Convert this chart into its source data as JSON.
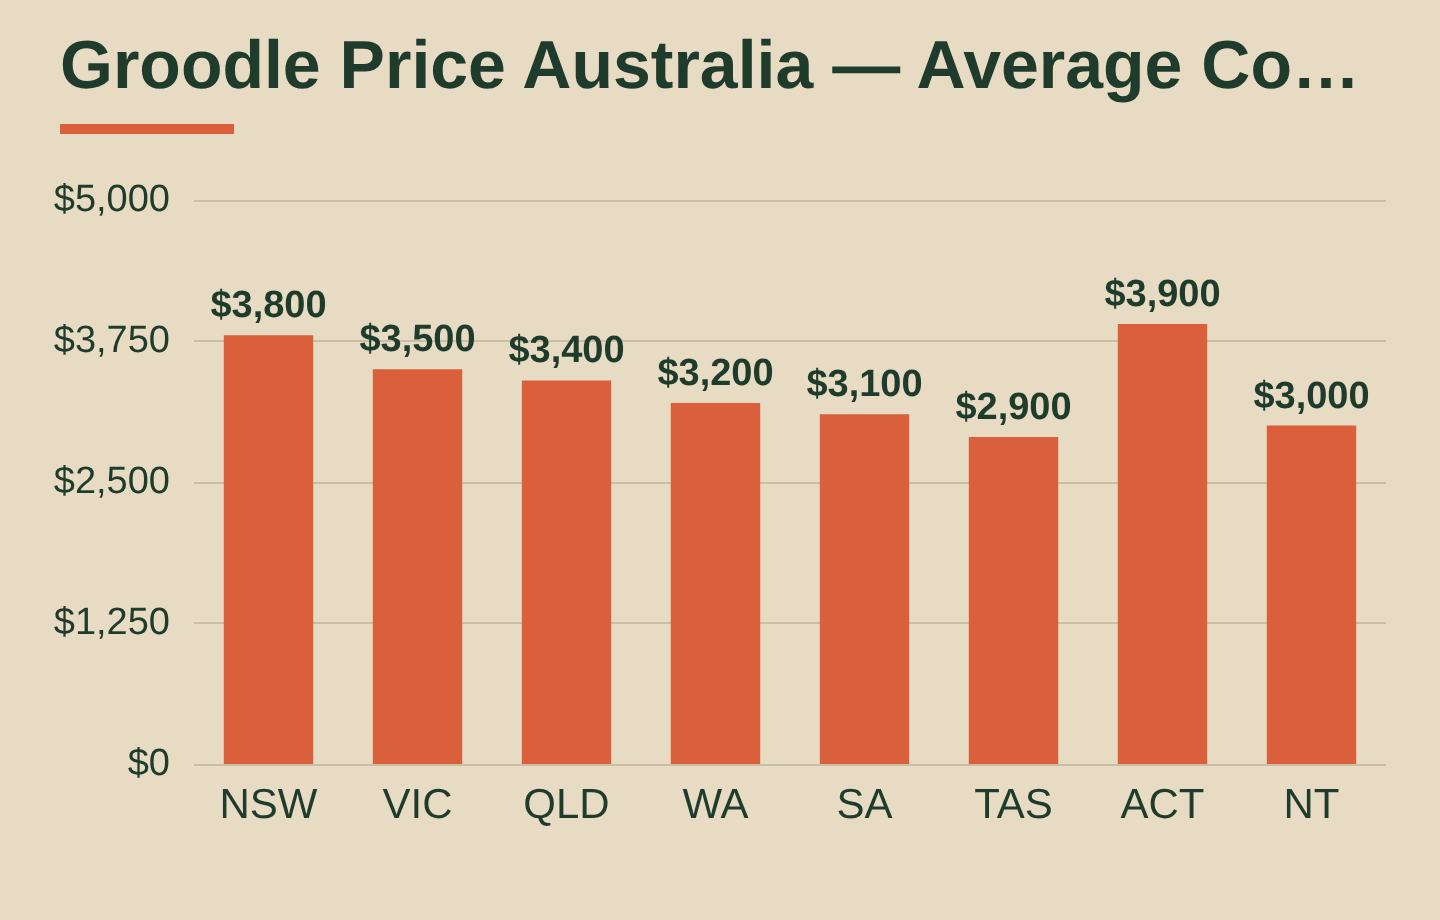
{
  "chart_data": {
    "type": "bar",
    "title": "Groodle Price Australia — Average Co…",
    "categories": [
      "NSW",
      "VIC",
      "QLD",
      "WA",
      "SA",
      "TAS",
      "ACT",
      "NT"
    ],
    "values": [
      3800,
      3500,
      3400,
      3200,
      3100,
      2900,
      3900,
      3000
    ],
    "value_labels": [
      "$3,800",
      "$3,500",
      "$3,400",
      "$3,200",
      "$3,100",
      "$2,900",
      "$3,900",
      "$3,000"
    ],
    "color": "#d9603b",
    "ylim": [
      0,
      5000
    ],
    "yticks": [
      {
        "value": 0,
        "label": "$0"
      },
      {
        "value": 1250,
        "label": "$1,250"
      },
      {
        "value": 2500,
        "label": "$2,500"
      },
      {
        "value": 3750,
        "label": "$3,750"
      },
      {
        "value": 5000,
        "label": "$5,000"
      }
    ],
    "grid": "y"
  }
}
